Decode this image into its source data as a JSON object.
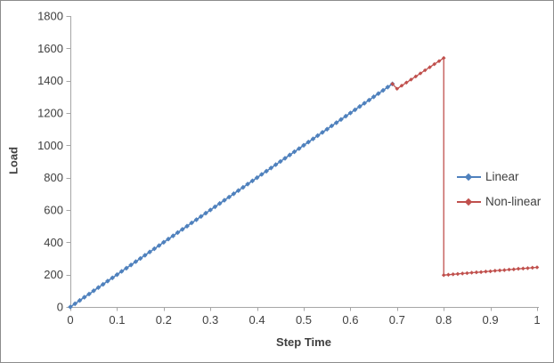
{
  "colors": {
    "background": "#ffffff",
    "chart_border": "#8c8c8c",
    "axis_line": "#a6a6a6",
    "tick_text": "#3f3f3f",
    "linear_series": "#4f81bd",
    "nonlinear_series": "#c0504d"
  },
  "axes": {
    "x_label": "Step Time",
    "y_label": "Load"
  },
  "legend": {
    "items": [
      {
        "label": "Linear"
      },
      {
        "label": "Non-linear"
      }
    ]
  },
  "chart_data": {
    "type": "line",
    "title": "",
    "xlabel": "Step Time",
    "ylabel": "Load",
    "xlim": [
      0,
      1
    ],
    "ylim": [
      0,
      1800
    ],
    "grid": false,
    "legend_position": "right",
    "xticks": [
      0,
      0.1,
      0.2,
      0.3,
      0.4,
      0.5,
      0.6,
      0.7,
      0.8,
      0.9,
      1
    ],
    "xtick_labels": [
      "0",
      "0.1",
      "0.2",
      "0.3",
      "0.4",
      "0.5",
      "0.6",
      "0.7",
      "0.8",
      "0.9",
      "1"
    ],
    "yticks": [
      0,
      200,
      400,
      600,
      800,
      1000,
      1200,
      1400,
      1600,
      1800
    ],
    "ytick_labels": [
      "0",
      "200",
      "400",
      "600",
      "800",
      "1000",
      "1200",
      "1400",
      "1600",
      "1800"
    ],
    "series": [
      {
        "name": "Linear",
        "color": "#4f81bd",
        "marker": "diamond",
        "marker_size": 2.8,
        "line_width": 1.6,
        "x": [
          0,
          0.01,
          0.02,
          0.03,
          0.04,
          0.05,
          0.06,
          0.07,
          0.08,
          0.09,
          0.1,
          0.11,
          0.12,
          0.13,
          0.14,
          0.15,
          0.16,
          0.17,
          0.18,
          0.19,
          0.2,
          0.21,
          0.22,
          0.23,
          0.24,
          0.25,
          0.26,
          0.27,
          0.28,
          0.29,
          0.3,
          0.31,
          0.32,
          0.33,
          0.34,
          0.35,
          0.36,
          0.37,
          0.38,
          0.39,
          0.4,
          0.41,
          0.42,
          0.43,
          0.44,
          0.45,
          0.46,
          0.47,
          0.48,
          0.49,
          0.5,
          0.51,
          0.52,
          0.53,
          0.54,
          0.55,
          0.56,
          0.57,
          0.58,
          0.59,
          0.6,
          0.61,
          0.62,
          0.63,
          0.64,
          0.65,
          0.66,
          0.67,
          0.68,
          0.69
        ],
        "y": [
          0,
          20,
          40,
          60,
          80,
          100,
          120,
          140,
          160,
          180,
          200,
          220,
          240,
          260,
          280,
          300,
          320,
          340,
          360,
          380,
          400,
          420,
          440,
          460,
          480,
          500,
          520,
          540,
          560,
          580,
          600,
          620,
          640,
          660,
          680,
          700,
          720,
          740,
          760,
          780,
          800,
          820,
          840,
          860,
          880,
          900,
          920,
          940,
          960,
          980,
          1000,
          1020,
          1040,
          1060,
          1080,
          1100,
          1120,
          1140,
          1160,
          1180,
          1200,
          1220,
          1240,
          1260,
          1280,
          1300,
          1320,
          1340,
          1360,
          1380
        ]
      },
      {
        "name": "Non-linear",
        "color": "#c0504d",
        "marker": "diamond",
        "marker_size": 2.3,
        "line_width": 1.3,
        "x": [
          0.69,
          0.7,
          0.71,
          0.72,
          0.73,
          0.74,
          0.75,
          0.76,
          0.77,
          0.78,
          0.79,
          0.8,
          0.8,
          0.81,
          0.82,
          0.83,
          0.84,
          0.85,
          0.86,
          0.87,
          0.88,
          0.89,
          0.9,
          0.91,
          0.92,
          0.93,
          0.94,
          0.95,
          0.96,
          0.97,
          0.98,
          0.99,
          1
        ],
        "y": [
          1380,
          1350,
          1369,
          1388,
          1407,
          1426,
          1445,
          1464,
          1483,
          1502,
          1521,
          1540,
          197,
          199,
          202,
          204,
          207,
          209,
          212,
          214,
          216,
          219,
          221,
          224,
          226,
          228,
          231,
          233,
          236,
          238,
          240,
          243,
          245
        ]
      }
    ]
  }
}
